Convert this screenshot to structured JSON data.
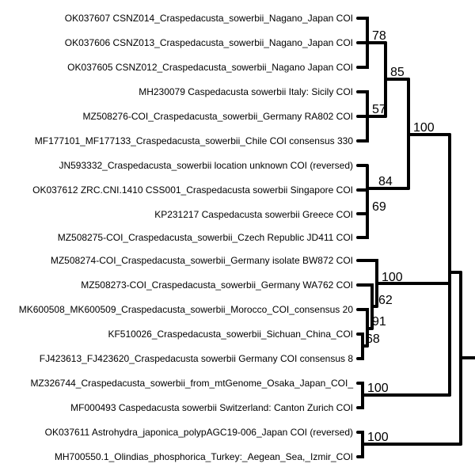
{
  "tree": {
    "leaves": [
      "OK037607 CSNZ014_Craspedacusta_sowerbii_Nagano_Japan COI",
      "OK037606 CSNZ013_Craspedacusta_sowerbii_Nagano_Japan COI",
      "OK037605 CSNZ012_Craspedacusta_sowerbii_Nagano Japan COI",
      "MH230079 Caspedacusta sowerbii Italy: Sicily COI",
      "MZ508276-COI_Craspedacusta_sowerbii_Germany RA802 COI",
      "MF177101_MF177133_Craspedacusta_sowerbii_Chile COI consensus 330",
      "JN593332_Craspedacusta_sowerbii location unknown COI (reversed)",
      "OK037612 ZRC.CNI.1410 CSS001_Craspedacusta sowerbii Singapore COI",
      "KP231217 Caspedacusta sowerbii Greece COI",
      "MZ508275-COI_Craspedacusta_sowerbii_Czech Republic JD411 COI",
      "MZ508274-COI_Craspedacusta_sowerbii_Germany isolate BW872 COI",
      "MZ508273-COI_Craspedacusta_sowerbii_Germany WA762 COI",
      "MK600508_MK600509_Craspedacusta_sowerbii_Morocco_COI_consensus 20",
      "KF510026_Craspedacusta_sowerbii_Sichuan_China_COI",
      "FJ423613_FJ423620_Craspedacusta sowerbii Germany COI consensus 8",
      "MZ326744_Craspedacusta_sowerbii_from_mtGenome_Osaka_Japan_COI_",
      "MF000493 Caspedacusta sowerbii Switzerland: Canton Zurich COI",
      "OK037611 Astrohydra_japonica_polypAGC19-006_Japan COI (reversed)",
      "MH700550.1_Olindias_phosphorica_Turkey:_Aegean_Sea,_Izmir_COI"
    ],
    "support_values": [
      "78",
      "85",
      "57",
      "100",
      "84",
      "69",
      "100",
      "62",
      "91",
      "68",
      "100",
      "100"
    ]
  }
}
